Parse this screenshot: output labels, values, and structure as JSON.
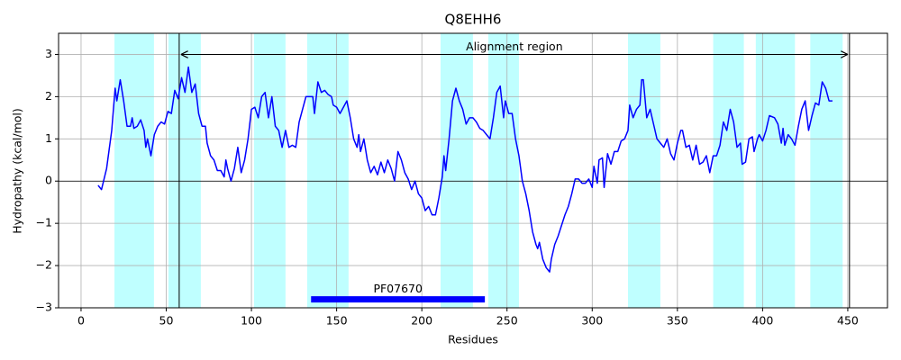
{
  "chart_data": {
    "type": "line",
    "title": "Q8EHH6",
    "x_label": "Residues",
    "y_label": "Hydropathy (kcal/mol)",
    "xlim": [
      -13.2,
      473.3
    ],
    "ylim": [
      -3,
      3.5
    ],
    "xticks": [
      0,
      50,
      100,
      150,
      200,
      250,
      300,
      350,
      400,
      450
    ],
    "yticks": [
      {
        "value": -3,
        "label": "−3"
      },
      {
        "value": -2,
        "label": "−2"
      },
      {
        "value": -1,
        "label": "−1"
      },
      0,
      1,
      2,
      3
    ],
    "grid": true,
    "zero_line": 0,
    "highlight_color": "#00ffff",
    "highlight_regions": [
      [
        19.6,
        42.8
      ],
      [
        51.3,
        70.3
      ],
      [
        101.5,
        120
      ],
      [
        132.7,
        157
      ],
      [
        211,
        230
      ],
      [
        239,
        257
      ],
      [
        321,
        340
      ],
      [
        371,
        389
      ],
      [
        396,
        419
      ],
      [
        428,
        447
      ]
    ],
    "alignment_region": {
      "label": "Alignment region",
      "start": 57.6,
      "end": 451,
      "y": 3
    },
    "domain": {
      "label": "PF07670",
      "start": 135,
      "end": 237,
      "y": -2.8,
      "color": "#0000ff"
    },
    "x": [
      10,
      12,
      15,
      18,
      20,
      21,
      23,
      25,
      27,
      29,
      30,
      31,
      33,
      35,
      37,
      38,
      39,
      41,
      43,
      45,
      47,
      49,
      51,
      53,
      55,
      57,
      59,
      61,
      63,
      65,
      67,
      69,
      71,
      73,
      74,
      76,
      78,
      80,
      82,
      84,
      85,
      86,
      88,
      90,
      92,
      94,
      96,
      98,
      100,
      102,
      104,
      106,
      108,
      110,
      112,
      114,
      116,
      118,
      120,
      122,
      124,
      126,
      128,
      130,
      132,
      134,
      136,
      137,
      139,
      141,
      143,
      145,
      147,
      148,
      150,
      152,
      154,
      156,
      158,
      160,
      162,
      163,
      164,
      166,
      168,
      170,
      172,
      174,
      176,
      178,
      180,
      182,
      184,
      186,
      188,
      190,
      192,
      194,
      196,
      198,
      200,
      202,
      204,
      206,
      208,
      210,
      212,
      213,
      214,
      216,
      218,
      220,
      222,
      224,
      226,
      228,
      230,
      232,
      234,
      236,
      238,
      240,
      242,
      244,
      246,
      248,
      249,
      251,
      253,
      255,
      257,
      259,
      261,
      263,
      265,
      267,
      268,
      269,
      271,
      273,
      275,
      276,
      278,
      280,
      282,
      284,
      286,
      288,
      290,
      292,
      294,
      296,
      298,
      300,
      301,
      303,
      304,
      306,
      307,
      309,
      311,
      313,
      315,
      317,
      319,
      321,
      322,
      324,
      326,
      328,
      329,
      330,
      332,
      334,
      336,
      338,
      340,
      342,
      344,
      346,
      348,
      350,
      352,
      353,
      355,
      357,
      359,
      361,
      363,
      365,
      367,
      369,
      371,
      373,
      375,
      377,
      379,
      381,
      383,
      385,
      387,
      388,
      390,
      392,
      394,
      395,
      397,
      398,
      400,
      402,
      404,
      407,
      409,
      411,
      412,
      413,
      415,
      417,
      419,
      421,
      423,
      425,
      427,
      429,
      431,
      433,
      435,
      437,
      439,
      441
    ],
    "series": [
      {
        "color": "#0000ff",
        "values": [
          -0.1,
          -0.2,
          0.3,
          1.2,
          2.2,
          1.9,
          2.4,
          1.9,
          1.3,
          1.3,
          1.5,
          1.25,
          1.3,
          1.45,
          1.2,
          0.8,
          1.0,
          0.6,
          1.1,
          1.3,
          1.4,
          1.35,
          1.65,
          1.6,
          2.15,
          1.95,
          2.45,
          2.1,
          2.7,
          2.1,
          2.3,
          1.6,
          1.3,
          1.3,
          0.9,
          0.6,
          0.5,
          0.25,
          0.25,
          0.1,
          0.5,
          0.3,
          0.0,
          0.3,
          0.8,
          0.2,
          0.5,
          1.0,
          1.7,
          1.75,
          1.5,
          2.0,
          2.1,
          1.5,
          2.0,
          1.3,
          1.2,
          0.8,
          1.2,
          0.8,
          0.85,
          0.8,
          1.4,
          1.7,
          2.0,
          2.0,
          2.0,
          1.6,
          2.35,
          2.1,
          2.15,
          2.05,
          2.0,
          1.8,
          1.75,
          1.6,
          1.75,
          1.9,
          1.5,
          1.0,
          0.8,
          1.1,
          0.7,
          1.0,
          0.5,
          0.2,
          0.35,
          0.15,
          0.45,
          0.2,
          0.5,
          0.3,
          0.0,
          0.7,
          0.5,
          0.2,
          0.05,
          -0.2,
          0.0,
          -0.3,
          -0.4,
          -0.7,
          -0.6,
          -0.8,
          -0.8,
          -0.4,
          0.1,
          0.6,
          0.25,
          1.0,
          1.9,
          2.2,
          1.9,
          1.7,
          1.35,
          1.5,
          1.5,
          1.4,
          1.25,
          1.2,
          1.1,
          1.0,
          1.5,
          2.1,
          2.25,
          1.5,
          1.9,
          1.6,
          1.6,
          1.0,
          0.6,
          0.0,
          -0.3,
          -0.7,
          -1.2,
          -1.5,
          -1.6,
          -1.45,
          -1.85,
          -2.05,
          -2.15,
          -1.85,
          -1.5,
          -1.3,
          -1.05,
          -0.8,
          -0.6,
          -0.3,
          0.05,
          0.05,
          -0.05,
          -0.05,
          0.05,
          -0.15,
          0.35,
          -0.05,
          0.5,
          0.55,
          -0.15,
          0.65,
          0.4,
          0.7,
          0.7,
          0.95,
          1.0,
          1.2,
          1.8,
          1.5,
          1.7,
          1.8,
          2.4,
          2.4,
          1.5,
          1.7,
          1.35,
          1.0,
          0.9,
          0.8,
          1.0,
          0.65,
          0.5,
          0.9,
          1.2,
          1.2,
          0.8,
          0.85,
          0.5,
          0.85,
          0.4,
          0.45,
          0.6,
          0.2,
          0.6,
          0.6,
          0.85,
          1.4,
          1.2,
          1.7,
          1.4,
          0.8,
          0.9,
          0.4,
          0.45,
          1.0,
          1.05,
          0.7,
          1.0,
          1.1,
          0.95,
          1.2,
          1.55,
          1.5,
          1.35,
          0.9,
          1.25,
          0.85,
          1.1,
          1.0,
          0.85,
          1.3,
          1.7,
          1.9,
          1.2,
          1.55,
          1.85,
          1.8,
          2.35,
          2.2,
          1.9,
          1.9
        ]
      }
    ]
  }
}
